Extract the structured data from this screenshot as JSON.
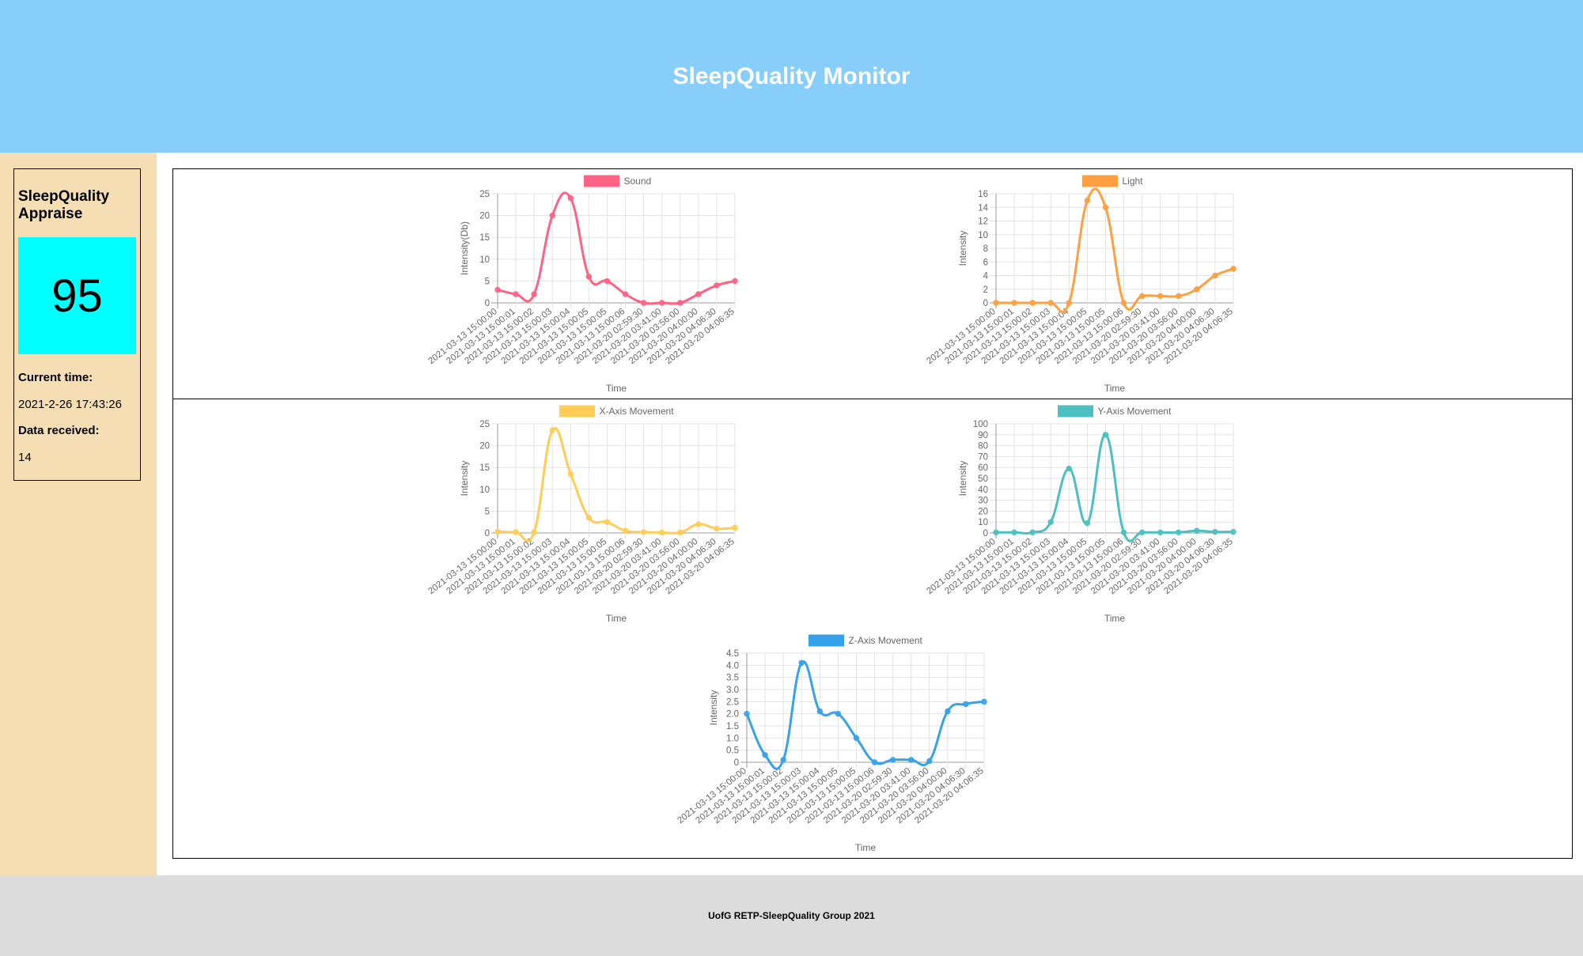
{
  "header": {
    "title": "SleepQuality Monitor"
  },
  "sidebar": {
    "appraise_title": "SleepQuality Appraise",
    "score": "95",
    "score_color": "#00ffff",
    "current_time_label": "Current time:",
    "current_time_value": "2021-2-26 17:43:26",
    "data_received_label": "Data received:",
    "data_received_value": "14"
  },
  "footer": {
    "text": "UofG RETP-SleepQuality Group 2021"
  },
  "chart_data": [
    {
      "id": "sound",
      "type": "line",
      "color": "#ff6384",
      "categories": [
        "2021-03-13 15:00:00",
        "2021-03-13 15:00:01",
        "2021-03-13 15:00:02",
        "2021-03-13 15:00:03",
        "2021-03-13 15:00:04",
        "2021-03-13 15:00:05",
        "2021-03-13 15:00:05",
        "2021-03-13 15:00:06",
        "2021-03-20 02:59:30",
        "2021-03-20 03:41:00",
        "2021-03-20 03:56:00",
        "2021-03-20 04:00:00",
        "2021-03-20 04:06:30",
        "2021-03-20 04:06:35"
      ],
      "series": [
        {
          "name": "Sound",
          "values": [
            3,
            2,
            2,
            20,
            24,
            6,
            5,
            2,
            0,
            0,
            0,
            2,
            4,
            5
          ]
        }
      ],
      "xlabel": "Time",
      "ylabel": "Intensity(Db)",
      "ylim": [
        0,
        25
      ],
      "yticks": [
        0,
        5,
        10,
        15,
        20,
        25
      ],
      "grid": true,
      "legend": "top"
    },
    {
      "id": "light",
      "type": "line",
      "color": "#ff9f40",
      "categories": [
        "2021-03-13 15:00:00",
        "2021-03-13 15:00:01",
        "2021-03-13 15:00:02",
        "2021-03-13 15:00:03",
        "2021-03-13 15:00:04",
        "2021-03-13 15:00:05",
        "2021-03-13 15:00:05",
        "2021-03-13 15:00:06",
        "2021-03-20 02:59:30",
        "2021-03-20 03:41:00",
        "2021-03-20 03:56:00",
        "2021-03-20 04:00:00",
        "2021-03-20 04:06:30",
        "2021-03-20 04:06:35"
      ],
      "series": [
        {
          "name": "Light",
          "values": [
            0,
            0,
            0,
            0,
            0,
            15,
            14,
            0,
            1,
            1,
            1,
            2,
            4,
            5
          ]
        }
      ],
      "xlabel": "Time",
      "ylabel": "Intensity",
      "ylim": [
        0,
        16
      ],
      "yticks": [
        0,
        2,
        4,
        6,
        8,
        10,
        12,
        14,
        16
      ],
      "grid": true,
      "legend": "top"
    },
    {
      "id": "x-axis",
      "type": "line",
      "color": "#ffcd56",
      "categories": [
        "2021-03-13 15:00:00",
        "2021-03-13 15:00:01",
        "2021-03-13 15:00:02",
        "2021-03-13 15:00:03",
        "2021-03-13 15:00:04",
        "2021-03-13 15:00:05",
        "2021-03-13 15:00:05",
        "2021-03-13 15:00:06",
        "2021-03-20 02:59:30",
        "2021-03-20 03:41:00",
        "2021-03-20 03:56:00",
        "2021-03-20 04:00:00",
        "2021-03-20 04:06:30",
        "2021-03-20 04:06:35"
      ],
      "series": [
        {
          "name": "X-Axis Movement",
          "values": [
            0.3,
            0.2,
            0.2,
            23.5,
            13.5,
            3.5,
            2.5,
            0.5,
            0.2,
            0.1,
            0.1,
            2,
            1,
            1.2
          ]
        }
      ],
      "xlabel": "Time",
      "ylabel": "Intensity",
      "ylim": [
        0,
        25
      ],
      "yticks": [
        0,
        5,
        10,
        15,
        20,
        25
      ],
      "grid": true,
      "legend": "top"
    },
    {
      "id": "y-axis",
      "type": "line",
      "color": "#4bc0c0",
      "categories": [
        "2021-03-13 15:00:00",
        "2021-03-13 15:00:01",
        "2021-03-13 15:00:02",
        "2021-03-13 15:00:03",
        "2021-03-13 15:00:04",
        "2021-03-13 15:00:05",
        "2021-03-13 15:00:05",
        "2021-03-13 15:00:06",
        "2021-03-20 02:59:30",
        "2021-03-20 03:41:00",
        "2021-03-20 03:56:00",
        "2021-03-20 04:00:00",
        "2021-03-20 04:06:30",
        "2021-03-20 04:06:35"
      ],
      "series": [
        {
          "name": "Y-Axis Movement",
          "values": [
            0.5,
            0.5,
            0.5,
            10,
            59,
            9,
            90,
            0.5,
            0.5,
            0.5,
            0.5,
            2,
            1,
            1
          ]
        }
      ],
      "xlabel": "Time",
      "ylabel": "Intensity",
      "ylim": [
        0,
        100
      ],
      "yticks": [
        0,
        10,
        20,
        30,
        40,
        50,
        60,
        70,
        80,
        90,
        100
      ],
      "grid": true,
      "legend": "top"
    },
    {
      "id": "z-axis",
      "type": "line",
      "color": "#36a2eb",
      "categories": [
        "2021-03-13 15:00:00",
        "2021-03-13 15:00:01",
        "2021-03-13 15:00:02",
        "2021-03-13 15:00:03",
        "2021-03-13 15:00:04",
        "2021-03-13 15:00:05",
        "2021-03-13 15:00:05",
        "2021-03-13 15:00:06",
        "2021-03-20 02:59:30",
        "2021-03-20 03:41:00",
        "2021-03-20 03:56:00",
        "2021-03-20 04:00:00",
        "2021-03-20 04:06:30",
        "2021-03-20 04:06:35"
      ],
      "series": [
        {
          "name": "Z-Axis Movement",
          "values": [
            2.0,
            0.3,
            0.1,
            4.1,
            2.1,
            2.0,
            1.0,
            0.0,
            0.1,
            0.1,
            0.05,
            2.1,
            2.4,
            2.5
          ]
        }
      ],
      "xlabel": "Time",
      "ylabel": "Intensity",
      "ylim": [
        0,
        4.5
      ],
      "yticks": [
        "0",
        "0.5",
        "1.0",
        "1.5",
        "2.0",
        "2.5",
        "3.0",
        "3.5",
        "4.0",
        "4.5"
      ],
      "grid": true,
      "legend": "top"
    }
  ]
}
